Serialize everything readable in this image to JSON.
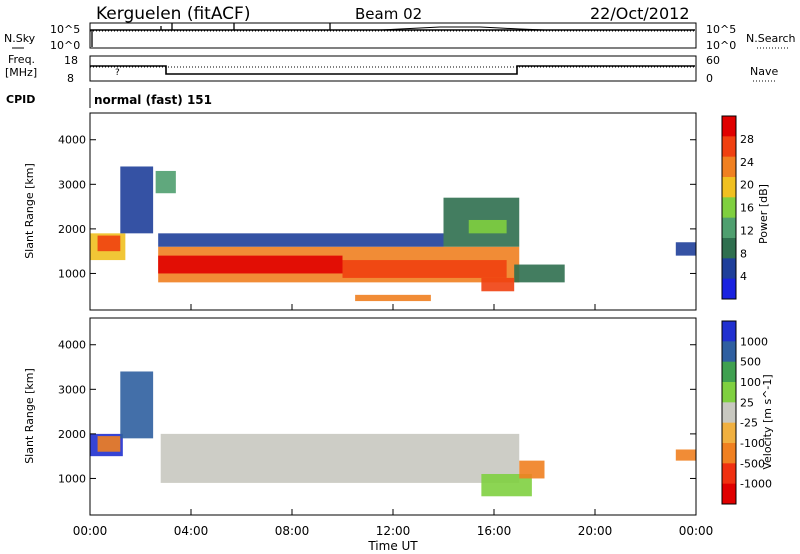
{
  "header": {
    "station": "Kerguelen (fitACF)",
    "beam": "Beam 02",
    "date": "22/Oct/2012"
  },
  "noise_panel": {
    "left_label": "N.Sky",
    "right_label": "N.Search",
    "left_ticks": [
      "10^5",
      "10^0"
    ],
    "right_ticks": [
      "10^5",
      "10^0"
    ]
  },
  "freq_panel": {
    "left_label_1": "Freq.",
    "left_label_2": "[MHz]",
    "left_ticks": [
      "18",
      "8"
    ],
    "right_label": "Nave",
    "right_ticks": [
      "60",
      "0"
    ]
  },
  "cpid_panel": {
    "label": "CPID",
    "text": "normal (fast) 151"
  },
  "x_axis": {
    "label": "Time UT",
    "ticks": [
      "00:00",
      "04:00",
      "08:00",
      "12:00",
      "16:00",
      "20:00",
      "00:00"
    ]
  },
  "colors": {
    "power_bar": [
      "#1a22e0",
      "#1f3f9a",
      "#2f6f4f",
      "#4f9f6f",
      "#7fcf3f",
      "#f0c020",
      "#f08020",
      "#f04010",
      "#e00000"
    ],
    "velocity_bar": [
      "#e00000",
      "#f03010",
      "#f08020",
      "#f0b040",
      "#c8c8c0",
      "#7fd040",
      "#3fa050",
      "#2f5fa0",
      "#2030d0"
    ]
  },
  "chart_data": [
    {
      "type": "heatmap",
      "name": "power",
      "ylabel": "Slant Range [km]",
      "yticks": [
        "1000",
        "2000",
        "3000",
        "4000"
      ],
      "ylim": [
        180,
        4600
      ],
      "xlim_hours": [
        0,
        24
      ],
      "colorbar_label": "Power [dB]",
      "colorbar_ticks": [
        "4",
        "8",
        "12",
        "16",
        "20",
        "24",
        "28"
      ],
      "regions": [
        {
          "t0": 0.0,
          "t1": 1.4,
          "r0": 1300,
          "r1": 1900,
          "level": 5
        },
        {
          "t0": 0.3,
          "t1": 1.2,
          "r0": 1500,
          "r1": 1850,
          "level": 7
        },
        {
          "t0": 1.2,
          "t1": 2.5,
          "r0": 1900,
          "r1": 3400,
          "level": 1
        },
        {
          "t0": 2.6,
          "t1": 3.4,
          "r0": 2800,
          "r1": 3300,
          "level": 3
        },
        {
          "t0": 2.7,
          "t1": 17.0,
          "r0": 800,
          "r1": 1600,
          "level": 6
        },
        {
          "t0": 2.7,
          "t1": 10.0,
          "r0": 1000,
          "r1": 1400,
          "level": 8
        },
        {
          "t0": 10.0,
          "t1": 16.5,
          "r0": 900,
          "r1": 1300,
          "level": 7
        },
        {
          "t0": 2.7,
          "t1": 14.0,
          "r0": 1600,
          "r1": 1900,
          "level": 1
        },
        {
          "t0": 14.0,
          "t1": 17.0,
          "r0": 1600,
          "r1": 2700,
          "level": 2
        },
        {
          "t0": 15.0,
          "t1": 16.5,
          "r0": 1900,
          "r1": 2200,
          "level": 4
        },
        {
          "t0": 16.8,
          "t1": 18.8,
          "r0": 800,
          "r1": 1200,
          "level": 2
        },
        {
          "t0": 15.5,
          "t1": 16.8,
          "r0": 600,
          "r1": 900,
          "level": 7
        },
        {
          "t0": 10.5,
          "t1": 13.5,
          "r0": 380,
          "r1": 520,
          "level": 6
        },
        {
          "t0": 23.2,
          "t1": 24.0,
          "r0": 1400,
          "r1": 1700,
          "level": 1
        }
      ]
    },
    {
      "type": "heatmap",
      "name": "velocity",
      "ylabel": "Slant Range [km]",
      "yticks": [
        "1000",
        "2000",
        "3000",
        "4000"
      ],
      "ylim": [
        180,
        4600
      ],
      "xlim_hours": [
        0,
        24
      ],
      "colorbar_label": "Velocity [m s^-1]",
      "colorbar_ticks": [
        "1000",
        "500",
        "100",
        "25",
        "-25",
        "-100",
        "-500",
        "-1000"
      ],
      "regions": [
        {
          "t0": 0.0,
          "t1": 1.3,
          "r0": 1500,
          "r1": 2000,
          "level": 8
        },
        {
          "t0": 0.3,
          "t1": 1.2,
          "r0": 1600,
          "r1": 1950,
          "level": 2
        },
        {
          "t0": 1.2,
          "t1": 2.5,
          "r0": 1900,
          "r1": 3400,
          "level": 7
        },
        {
          "t0": 2.8,
          "t1": 17.0,
          "r0": 900,
          "r1": 2000,
          "level": 4
        },
        {
          "t0": 15.5,
          "t1": 17.5,
          "r0": 600,
          "r1": 1100,
          "level": 5
        },
        {
          "t0": 17.0,
          "t1": 18.0,
          "r0": 1000,
          "r1": 1400,
          "level": 2
        },
        {
          "t0": 23.2,
          "t1": 24.0,
          "r0": 1400,
          "r1": 1650,
          "level": 2
        }
      ]
    }
  ]
}
